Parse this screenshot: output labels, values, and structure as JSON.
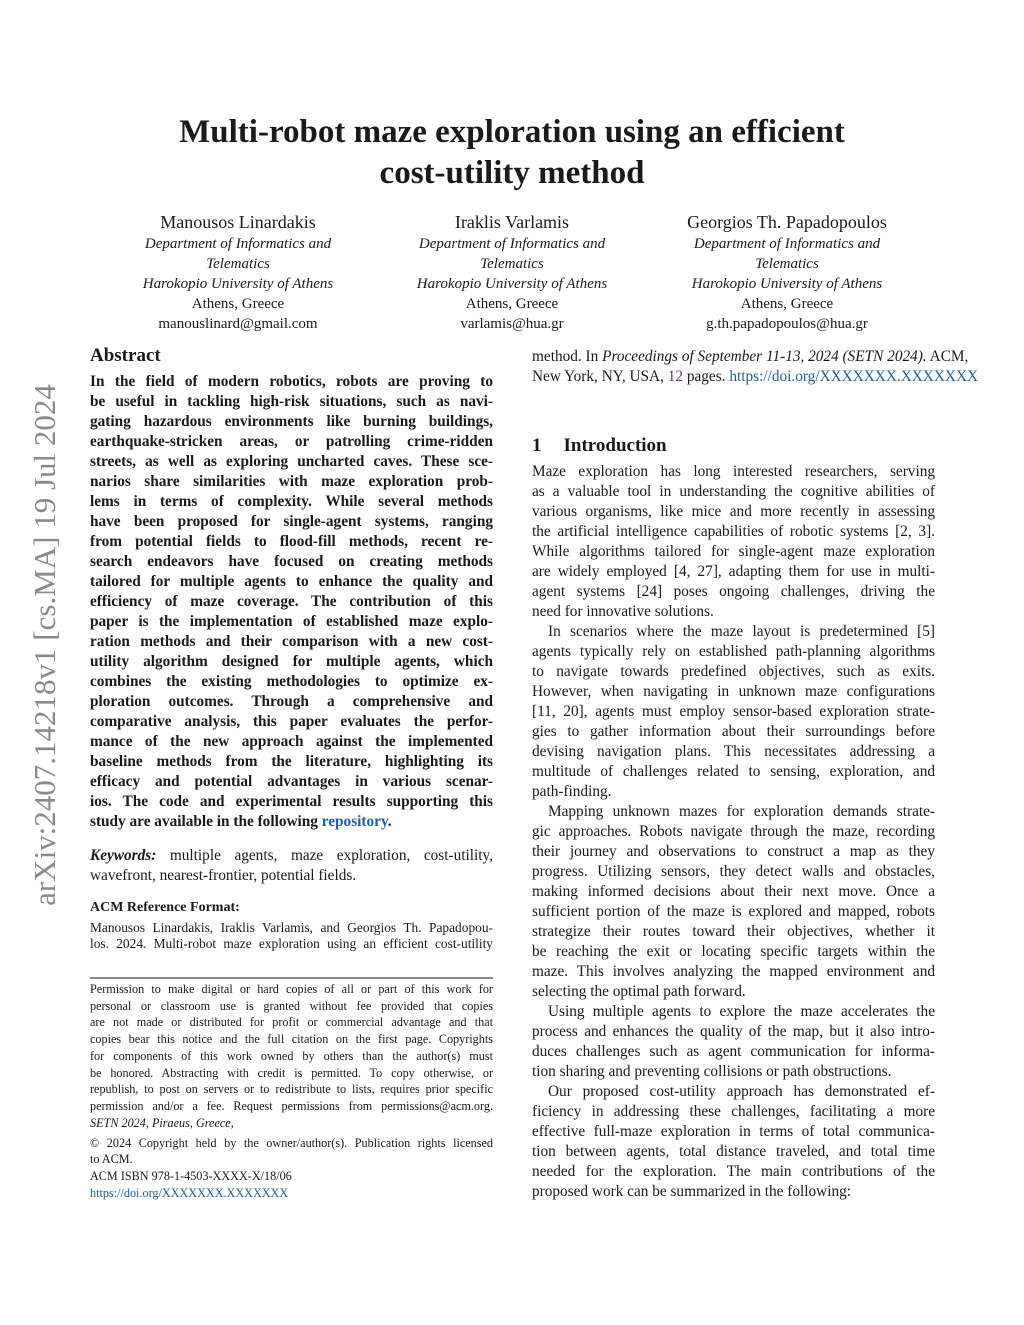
{
  "title": [
    "Multi-robot maze exploration using an efficient",
    "cost-utility method"
  ],
  "authors": [
    {
      "name": "Manousos Linardakis",
      "dept1": "Department of Informatics and",
      "dept2": "Telematics",
      "univ": "Harokopio University of Athens",
      "city": "Athens, Greece",
      "email": "manouslinard@gmail.com"
    },
    {
      "name": "Iraklis Varlamis",
      "dept1": "Department of Informatics and",
      "dept2": "Telematics",
      "univ": "Harokopio University of Athens",
      "city": "Athens, Greece",
      "email": "varlamis@hua.gr"
    },
    {
      "name": "Georgios Th. Papadopoulos",
      "dept1": "Department of Informatics and",
      "dept2": "Telematics",
      "univ": "Harokopio University of Athens",
      "city": "Athens, Greece",
      "email": "g.th.papadopoulos@hua.gr"
    }
  ],
  "arxiv_stamp": "arXiv:2407.14218v1  [cs.MA]  19 Jul 2024",
  "abstract": {
    "heading": "Abstract",
    "lines": [
      "In the field of modern robotics, robots are proving to",
      "be useful in tackling high-risk situations, such as navi-",
      "gating hazardous environments like burning buildings,",
      "earthquake-stricken areas, or patrolling crime-ridden",
      "streets, as well as exploring uncharted caves. These sce-",
      "narios share similarities with maze exploration prob-",
      "lems in terms of complexity. While several methods",
      "have been proposed for single-agent systems, ranging",
      "from potential fields to flood-fill methods, recent re-",
      "search endeavors have focused on creating methods",
      "tailored for multiple agents to enhance the quality and",
      "efficiency of maze coverage. The contribution of this",
      "paper is the implementation of established maze explo-",
      "ration methods and their comparison with a new cost-",
      "utility algorithm designed for multiple agents, which",
      "combines the existing methodologies to optimize ex-",
      "ploration outcomes. Through a comprehensive and",
      "comparative analysis, this paper evaluates the perfor-",
      "mance of the new approach against the implemented",
      "baseline methods from the literature, highlighting its",
      "efficacy and potential advantages in various scenar-",
      "ios. The code and experimental results supporting this"
    ],
    "last_line_prefix": "study are available in the following ",
    "repository_link": "repository",
    "last_line_suffix": "."
  },
  "keywords": {
    "label": "Keywords:",
    "line1": " multiple agents, maze exploration, cost-utility,",
    "line2": "wavefront, nearest-frontier, potential fields."
  },
  "acm_reference": {
    "heading": "ACM Reference Format:",
    "line1": "Manousos Linardakis, Iraklis Varlamis, and Georgios Th. Papadopou-",
    "line2": "los. 2024. Multi-robot maze exploration using an efficient cost-utility",
    "line3_a": "method. In ",
    "line3_b": "Proceedings of September 11-13, 2024 (SETN 2024).",
    "line3_c": " ACM,",
    "line4_a": "New York, NY, USA, ",
    "line4_pages": "12",
    "line4_b": " pages. ",
    "doi": "https://doi.org/XXXXXXX.XXXXXXX"
  },
  "permission": {
    "lines": [
      "Permission to make digital or hard copies of all or part of this work for",
      "personal or classroom use is granted without fee provided that copies",
      "are not made or distributed for profit or commercial advantage and that",
      "copies bear this notice and the full citation on the first page. Copyrights",
      "for components of this work owned by others than the author(s) must",
      "be honored. Abstracting with credit is permitted. To copy otherwise, or",
      "republish, to post on servers or to redistribute to lists, requires prior specific",
      "permission and/or a fee. Request permissions from permissions@acm.org."
    ],
    "venue": "SETN 2024, Piraeus, Greece,",
    "copyright1": "© 2024 Copyright held by the owner/author(s). Publication rights licensed",
    "copyright2": "to ACM.",
    "isbn": "ACM ISBN 978-1-4503-XXXX-X/18/06",
    "doi": "https://doi.org/XXXXXXX.XXXXXXX"
  },
  "introduction": {
    "heading_number": "1",
    "heading": "Introduction",
    "paragraphs": [
      {
        "lines": [
          "Maze exploration has long interested researchers, serving",
          "as a valuable tool in understanding the cognitive abilities of",
          "various organisms, like mice and more recently in assessing",
          "the artificial intelligence capabilities of robotic systems [2, 3].",
          "While algorithms tailored for single-agent maze exploration",
          "are widely employed [4, 27], adapting them for use in multi-",
          "agent systems [24] poses ongoing challenges, driving the",
          "need for innovative solutions."
        ]
      },
      {
        "lines": [
          "In scenarios where the maze layout is predetermined [5]",
          "agents typically rely on established path-planning algorithms",
          "to navigate towards predefined objectives, such as exits.",
          "However, when navigating in unknown maze configurations",
          "[11, 20], agents must employ sensor-based exploration strate-",
          "gies to gather information about their surroundings before",
          "devising navigation plans. This necessitates addressing a",
          "multitude of challenges related to sensing, exploration, and",
          "path-finding."
        ]
      },
      {
        "lines": [
          "Mapping unknown mazes for exploration demands strate-",
          "gic approaches. Robots navigate through the maze, recording",
          "their journey and observations to construct a map as they",
          "progress. Utilizing sensors, they detect walls and obstacles,",
          "making informed decisions about their next move. Once a",
          "sufficient portion of the maze is explored and mapped, robots",
          "strategize their routes toward their objectives, whether it",
          "be reaching the exit or locating specific targets within the",
          "maze. This involves analyzing the mapped environment and",
          "selecting the optimal path forward."
        ]
      },
      {
        "lines": [
          "Using multiple agents to explore the maze accelerates the",
          "process and enhances the quality of the map, but it also intro-",
          "duces challenges such as agent communication for informa-",
          "tion sharing and preventing collisions or path obstructions."
        ]
      },
      {
        "lines": [
          "Our proposed cost-utility approach has demonstrated ef-",
          "ficiency in addressing these challenges, facilitating a more",
          "effective full-maze exploration in terms of total communica-",
          "tion between agents, total distance traveled, and total time",
          "needed for the exploration. The main contributions of the",
          "proposed work can be summarized in the following:"
        ]
      }
    ]
  },
  "colors": {
    "link": "#1f5f99",
    "citation": "#7a2f7a",
    "stamp": "#8a8a8a"
  }
}
